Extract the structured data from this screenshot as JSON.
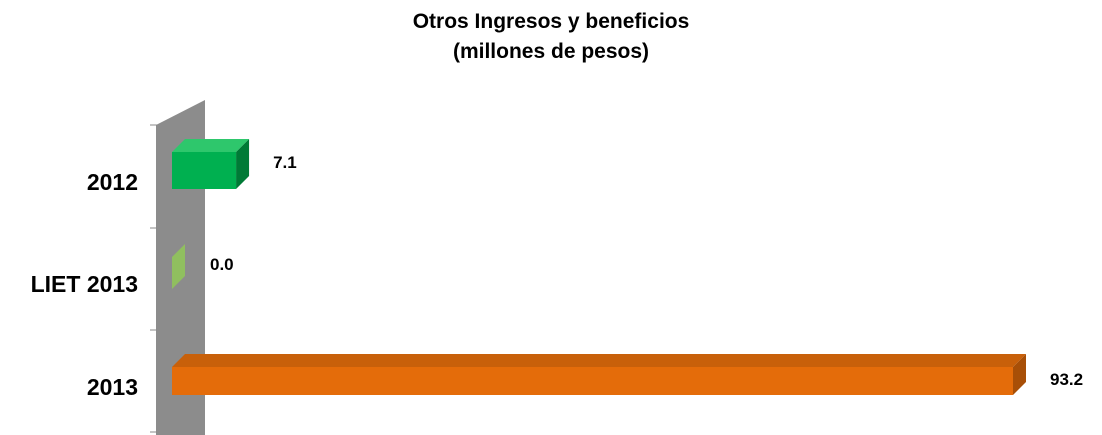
{
  "chart_data": {
    "type": "bar",
    "orientation": "horizontal",
    "style": "3d",
    "title_lines": [
      "Otros Ingresos y beneficios",
      "(millones de pesos)"
    ],
    "categories": [
      "2012",
      "LIET 2013",
      "2013"
    ],
    "values": [
      7.1,
      0.0,
      93.2
    ],
    "value_labels": [
      "7.1",
      "0.0",
      "93.2"
    ],
    "bar_colors": [
      "#00b050",
      "#92d050",
      "#e46c0a"
    ],
    "side_colors": [
      "#007a36",
      "#6a9a38",
      "#a84f07"
    ],
    "top_colors": [
      "#2ec76c",
      "#b5e08a",
      "#c8600a"
    ],
    "wall_color": "#8c8c8c",
    "xlim": [
      0,
      93.2
    ],
    "grid": false,
    "legend": "none"
  }
}
